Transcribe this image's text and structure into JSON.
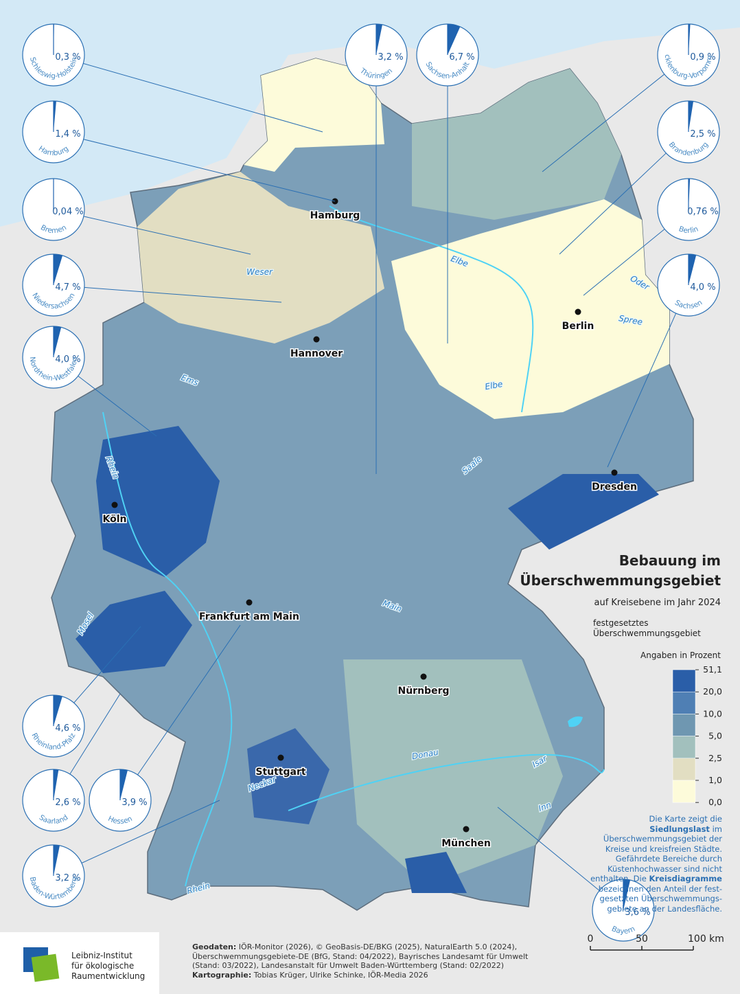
{
  "title": {
    "line1": "Bebauung im",
    "line2": "Überschwemmungsgebiet",
    "subtitle": "auf Kreisebene im Jahr 2024"
  },
  "flood_legend": {
    "line1": "festgesetztes",
    "line2": "Überschwemmungsgebiet",
    "color": "#4fd2f5"
  },
  "legend": {
    "caption": "Angaben in Prozent",
    "colors": [
      "#2a5ea8",
      "#4f7fb4",
      "#6f97b1",
      "#a2c0bd",
      "#e2dec2",
      "#fdfbda"
    ],
    "ticks": [
      {
        "value": 51.1,
        "label": "51,1"
      },
      {
        "value": 20,
        "label": "20,0"
      },
      {
        "value": 10,
        "label": "10,0"
      },
      {
        "value": 5,
        "label": "5,0"
      },
      {
        "value": 2.5,
        "label": "2,5"
      },
      {
        "value": 1,
        "label": "1,0"
      },
      {
        "value": 0,
        "label": "0,0"
      }
    ]
  },
  "pies": [
    {
      "state": "Schleswig-Holstein",
      "value": 0.3,
      "label": "0,3 %"
    },
    {
      "state": "Hamburg",
      "value": 1.4,
      "label": "1,4 %"
    },
    {
      "state": "Bremen",
      "value": 0.04,
      "label": "0,04 %"
    },
    {
      "state": "Niedersachsen",
      "value": 4.7,
      "label": "4,7 %"
    },
    {
      "state": "Nordrhein-Westfalen",
      "value": 4.0,
      "label": "4,0 %"
    },
    {
      "state": "Thüringen",
      "value": 3.2,
      "label": "3,2 %"
    },
    {
      "state": "Sachsen-Anhalt",
      "value": 6.7,
      "label": "6,7 %"
    },
    {
      "state": "Mecklenburg-Vorpommern",
      "value": 0.9,
      "label": "0,9 %"
    },
    {
      "state": "Brandenburg",
      "value": 2.5,
      "label": "2,5 %"
    },
    {
      "state": "Berlin",
      "value": 0.76,
      "label": "0,76 %"
    },
    {
      "state": "Sachsen",
      "value": 4.0,
      "label": "4,0 %"
    },
    {
      "state": "Rheinland-Pfalz",
      "value": 4.6,
      "label": "4,6 %"
    },
    {
      "state": "Saarland",
      "value": 2.6,
      "label": "2,6 %"
    },
    {
      "state": "Hessen",
      "value": 3.9,
      "label": "3,9 %"
    },
    {
      "state": "Baden-Würtemberg",
      "value": 3.2,
      "label": "3,2 %"
    },
    {
      "state": "Bayern",
      "value": 3.6,
      "label": "3,6 %"
    }
  ],
  "pie_color": "#1f63b0",
  "cities": [
    "Hamburg",
    "Berlin",
    "Hannover",
    "Köln",
    "Dresden",
    "Frankfurt am Main",
    "Nürnberg",
    "Stuttgart",
    "München"
  ],
  "rivers": [
    "Weser",
    "Elbe",
    "Oder",
    "Spree",
    "Ems",
    "Elbe",
    "Rhein",
    "Saale",
    "Main",
    "Mosel",
    "Donau",
    "Isar",
    "Neckar",
    "Inn",
    "Rhein"
  ],
  "note": [
    {
      "text": "Die Karte zeigt die "
    },
    {
      "text": "Siedlungslast",
      "bold": true
    },
    {
      "text": " im Überschwemmungsgebiet der Kreise und kreisfreien Städte. Gefährdete Bereiche durch Küsten­hochwasser sind nicht enthalten. Die "
    },
    {
      "text": "Kreisdiagramme",
      "bold": true
    },
    {
      "text": " bezeichnen den Anteil der fest­gesetzten Über­schwemmungs­gebiete an der Landesfläche."
    }
  ],
  "sources": [
    {
      "text": "Geodaten:",
      "bold": true
    },
    {
      "text": " IÖR-Monitor (2026), © GeoBasis-DE/BKG (2025), NaturalEarth 5.0 (2024), Überschwemmungsgebiete-DE (BfG, Stand: 04/2022), Bayrisches Landesamt für Umwelt (Stand: 03/2022), Landesanstalt für Umwelt Baden-Württemberg (Stand: 02/2022) "
    },
    {
      "text": "Kartographie:",
      "bold": true
    },
    {
      "text": " Tobias Krüger, Ulrike Schinke, IÖR-Media 2026"
    }
  ],
  "logo": [
    "Leibniz-Institut",
    "für ökologische",
    "Raumentwicklung"
  ],
  "scale": {
    "ticks": [
      0,
      50,
      {
        "value": 100,
        "label": "100 km"
      }
    ],
    "max": 100
  }
}
